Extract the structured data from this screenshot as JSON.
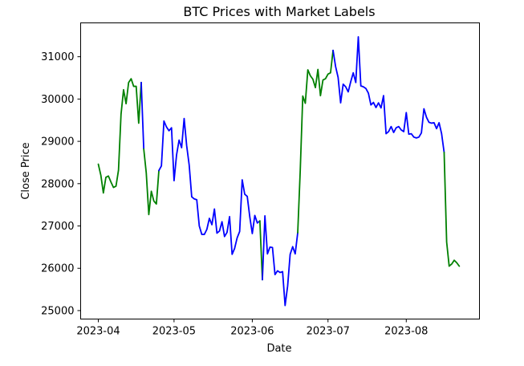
{
  "chart_data": {
    "type": "line",
    "title": "BTC Prices with Market Labels",
    "xlabel": "Date",
    "ylabel": "Close Price",
    "colors": {
      "bull": "#008000",
      "bear": "#0000ff",
      "background": "#ffffff"
    },
    "xlim": [
      "2023-03-25",
      "2023-08-30"
    ],
    "ylim": [
      24800,
      31800
    ],
    "x_ticks": [
      {
        "date": "2023-04-01",
        "label": "2023-04"
      },
      {
        "date": "2023-05-01",
        "label": "2023-05"
      },
      {
        "date": "2023-06-01",
        "label": "2023-06"
      },
      {
        "date": "2023-07-01",
        "label": "2023-07"
      },
      {
        "date": "2023-08-01",
        "label": "2023-08"
      }
    ],
    "y_ticks": [
      25000,
      26000,
      27000,
      28000,
      29000,
      30000,
      31000
    ],
    "grid": false,
    "segments": [
      {
        "color": "#008000",
        "points": [
          [
            "2023-04-01",
            28460
          ],
          [
            "2023-04-02",
            28200
          ],
          [
            "2023-04-03",
            27780
          ],
          [
            "2023-04-04",
            28150
          ],
          [
            "2023-04-05",
            28180
          ],
          [
            "2023-04-06",
            28040
          ],
          [
            "2023-04-07",
            27910
          ],
          [
            "2023-04-08",
            27940
          ],
          [
            "2023-04-09",
            28320
          ],
          [
            "2023-04-10",
            29640
          ],
          [
            "2023-04-11",
            30220
          ],
          [
            "2023-04-12",
            29890
          ],
          [
            "2023-04-13",
            30390
          ],
          [
            "2023-04-14",
            30480
          ],
          [
            "2023-04-15",
            30300
          ],
          [
            "2023-04-16",
            30300
          ],
          [
            "2023-04-17",
            29430
          ],
          [
            "2023-04-18",
            30390
          ]
        ]
      },
      {
        "color": "#0000ff",
        "points": [
          [
            "2023-04-18",
            30390
          ],
          [
            "2023-04-19",
            28820
          ]
        ]
      },
      {
        "color": "#008000",
        "points": [
          [
            "2023-04-19",
            28820
          ],
          [
            "2023-04-20",
            28250
          ],
          [
            "2023-04-21",
            27270
          ],
          [
            "2023-04-22",
            27820
          ],
          [
            "2023-04-23",
            27590
          ],
          [
            "2023-04-24",
            27520
          ],
          [
            "2023-04-25",
            28310
          ]
        ]
      },
      {
        "color": "#0000ff",
        "points": [
          [
            "2023-04-25",
            28310
          ],
          [
            "2023-04-26",
            28420
          ],
          [
            "2023-04-27",
            29480
          ],
          [
            "2023-04-28",
            29340
          ],
          [
            "2023-04-29",
            29250
          ],
          [
            "2023-04-30",
            29320
          ],
          [
            "2023-05-01",
            28070
          ],
          [
            "2023-05-02",
            28680
          ],
          [
            "2023-05-03",
            29030
          ],
          [
            "2023-05-04",
            28850
          ],
          [
            "2023-05-05",
            29540
          ],
          [
            "2023-05-06",
            28900
          ],
          [
            "2023-05-07",
            28440
          ],
          [
            "2023-05-08",
            27690
          ],
          [
            "2023-05-09",
            27640
          ],
          [
            "2023-05-10",
            27620
          ],
          [
            "2023-05-11",
            27000
          ],
          [
            "2023-05-12",
            26800
          ],
          [
            "2023-05-13",
            26800
          ],
          [
            "2023-05-14",
            26920
          ],
          [
            "2023-05-15",
            27180
          ],
          [
            "2023-05-16",
            27030
          ],
          [
            "2023-05-17",
            27400
          ],
          [
            "2023-05-18",
            26830
          ],
          [
            "2023-05-19",
            26880
          ],
          [
            "2023-05-20",
            27100
          ],
          [
            "2023-05-21",
            26750
          ],
          [
            "2023-05-22",
            26850
          ],
          [
            "2023-05-23",
            27220
          ],
          [
            "2023-05-24",
            26330
          ],
          [
            "2023-05-25",
            26470
          ],
          [
            "2023-05-26",
            26720
          ],
          [
            "2023-05-27",
            26870
          ],
          [
            "2023-05-28",
            28090
          ],
          [
            "2023-05-29",
            27750
          ],
          [
            "2023-05-30",
            27700
          ],
          [
            "2023-05-31",
            27220
          ],
          [
            "2023-06-01",
            26820
          ],
          [
            "2023-06-02",
            27250
          ],
          [
            "2023-06-03",
            27070
          ],
          [
            "2023-06-04",
            27120
          ]
        ]
      },
      {
        "color": "#008000",
        "points": [
          [
            "2023-06-04",
            27120
          ],
          [
            "2023-06-05",
            25730
          ]
        ]
      },
      {
        "color": "#0000ff",
        "points": [
          [
            "2023-06-05",
            25730
          ],
          [
            "2023-06-06",
            27240
          ],
          [
            "2023-06-07",
            26340
          ],
          [
            "2023-06-08",
            26500
          ],
          [
            "2023-06-09",
            26490
          ],
          [
            "2023-06-10",
            25850
          ],
          [
            "2023-06-11",
            25940
          ],
          [
            "2023-06-12",
            25900
          ],
          [
            "2023-06-13",
            25920
          ],
          [
            "2023-06-14",
            25120
          ],
          [
            "2023-06-15",
            25580
          ],
          [
            "2023-06-16",
            26330
          ],
          [
            "2023-06-17",
            26510
          ],
          [
            "2023-06-18",
            26340
          ],
          [
            "2023-06-19",
            26840
          ]
        ]
      },
      {
        "color": "#008000",
        "points": [
          [
            "2023-06-19",
            26840
          ],
          [
            "2023-06-20",
            28310
          ],
          [
            "2023-06-21",
            30070
          ],
          [
            "2023-06-22",
            29900
          ],
          [
            "2023-06-23",
            30690
          ],
          [
            "2023-06-24",
            30550
          ],
          [
            "2023-06-25",
            30470
          ],
          [
            "2023-06-26",
            30270
          ],
          [
            "2023-06-27",
            30700
          ],
          [
            "2023-06-28",
            30080
          ],
          [
            "2023-06-29",
            30450
          ],
          [
            "2023-06-30",
            30480
          ],
          [
            "2023-07-01",
            30590
          ],
          [
            "2023-07-02",
            30620
          ],
          [
            "2023-07-03",
            31150
          ]
        ]
      },
      {
        "color": "#0000ff",
        "points": [
          [
            "2023-07-03",
            31150
          ],
          [
            "2023-07-04",
            30770
          ],
          [
            "2023-07-05",
            30510
          ],
          [
            "2023-07-06",
            29910
          ],
          [
            "2023-07-07",
            30350
          ],
          [
            "2023-07-08",
            30290
          ],
          [
            "2023-07-09",
            30170
          ],
          [
            "2023-07-10",
            30410
          ],
          [
            "2023-07-11",
            30620
          ],
          [
            "2023-07-12",
            30390
          ],
          [
            "2023-07-13",
            31470
          ],
          [
            "2023-07-14",
            30310
          ],
          [
            "2023-07-15",
            30290
          ],
          [
            "2023-07-16",
            30250
          ],
          [
            "2023-07-17",
            30140
          ],
          [
            "2023-07-18",
            29860
          ],
          [
            "2023-07-19",
            29920
          ],
          [
            "2023-07-20",
            29800
          ],
          [
            "2023-07-21",
            29910
          ],
          [
            "2023-07-22",
            29790
          ],
          [
            "2023-07-23",
            30080
          ],
          [
            "2023-07-24",
            29180
          ],
          [
            "2023-07-25",
            29230
          ],
          [
            "2023-07-26",
            29350
          ],
          [
            "2023-07-27",
            29210
          ],
          [
            "2023-07-28",
            29320
          ],
          [
            "2023-07-29",
            29350
          ],
          [
            "2023-07-30",
            29270
          ],
          [
            "2023-07-31",
            29230
          ],
          [
            "2023-08-01",
            29680
          ],
          [
            "2023-08-02",
            29170
          ],
          [
            "2023-08-03",
            29180
          ],
          [
            "2023-08-04",
            29100
          ],
          [
            "2023-08-05",
            29080
          ],
          [
            "2023-08-06",
            29100
          ],
          [
            "2023-08-07",
            29200
          ],
          [
            "2023-08-08",
            29770
          ],
          [
            "2023-08-09",
            29570
          ],
          [
            "2023-08-10",
            29450
          ],
          [
            "2023-08-11",
            29430
          ],
          [
            "2023-08-12",
            29440
          ],
          [
            "2023-08-13",
            29300
          ],
          [
            "2023-08-14",
            29440
          ],
          [
            "2023-08-15",
            29180
          ],
          [
            "2023-08-16",
            28740
          ]
        ]
      },
      {
        "color": "#008000",
        "points": [
          [
            "2023-08-16",
            28740
          ],
          [
            "2023-08-17",
            26620
          ],
          [
            "2023-08-18",
            26050
          ],
          [
            "2023-08-19",
            26100
          ],
          [
            "2023-08-20",
            26190
          ],
          [
            "2023-08-21",
            26130
          ],
          [
            "2023-08-22",
            26050
          ]
        ]
      }
    ]
  }
}
